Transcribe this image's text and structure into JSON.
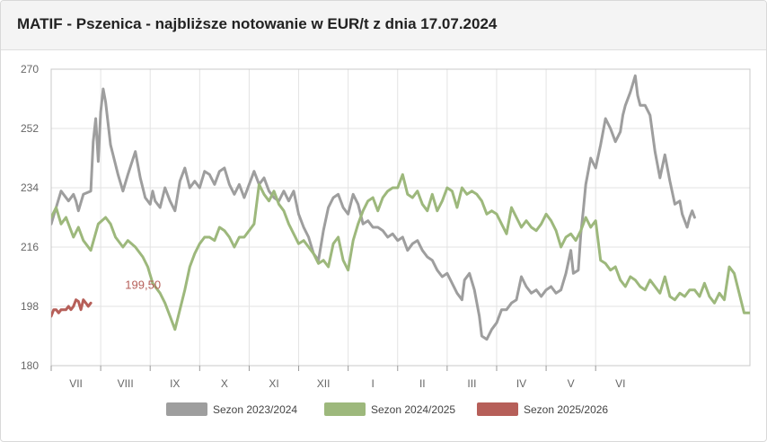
{
  "header": {
    "title": "MATIF - Pszenica - najbliższe notowanie w EUR/t z dnia 17.07.2024"
  },
  "colors": {
    "series_2023": "#9e9e9e",
    "series_2024": "#9db87c",
    "series_2025": "#b65f59",
    "grid": "#e3e3e3",
    "axis_text": "#666666"
  },
  "chart_data": {
    "type": "line",
    "title": "MATIF - Pszenica - najbliższe notowanie w EUR/t z dnia 17.07.2024",
    "xlabel": "",
    "ylabel": "",
    "ylim": [
      180,
      270
    ],
    "yticks": [
      180,
      198,
      216,
      234,
      252,
      270
    ],
    "months": [
      "VII",
      "VIII",
      "IX",
      "X",
      "XI",
      "XII",
      "I",
      "II",
      "III",
      "IV",
      "V",
      "VI"
    ],
    "x_unit": "month index (0 = start of VII, 12 = end of VI)",
    "grid": true,
    "legend_position": "bottom",
    "annotation": {
      "text": "199,50",
      "series": "Sezon 2025/2026",
      "x": 0.55,
      "y": 199.5
    },
    "series": [
      {
        "name": "Sezon 2023/2024",
        "color": "#9e9e9e",
        "points": [
          [
            0.0,
            223
          ],
          [
            0.1,
            228
          ],
          [
            0.2,
            233
          ],
          [
            0.35,
            230
          ],
          [
            0.45,
            232
          ],
          [
            0.5,
            230
          ],
          [
            0.55,
            227
          ],
          [
            0.65,
            232
          ],
          [
            0.8,
            233
          ],
          [
            0.85,
            248
          ],
          [
            0.9,
            255
          ],
          [
            0.95,
            242
          ],
          [
            1.0,
            257
          ],
          [
            1.05,
            264
          ],
          [
            1.1,
            260
          ],
          [
            1.2,
            247
          ],
          [
            1.35,
            238
          ],
          [
            1.45,
            233
          ],
          [
            1.55,
            238
          ],
          [
            1.7,
            245
          ],
          [
            1.8,
            237
          ],
          [
            1.9,
            231
          ],
          [
            2.0,
            229
          ],
          [
            2.05,
            233
          ],
          [
            2.1,
            230
          ],
          [
            2.2,
            228
          ],
          [
            2.3,
            234
          ],
          [
            2.4,
            230
          ],
          [
            2.5,
            227
          ],
          [
            2.6,
            236
          ],
          [
            2.7,
            240
          ],
          [
            2.8,
            234
          ],
          [
            2.9,
            236
          ],
          [
            3.0,
            234
          ],
          [
            3.1,
            239
          ],
          [
            3.2,
            238
          ],
          [
            3.3,
            235
          ],
          [
            3.4,
            239
          ],
          [
            3.5,
            240
          ],
          [
            3.6,
            235
          ],
          [
            3.7,
            232
          ],
          [
            3.8,
            235
          ],
          [
            3.9,
            231
          ],
          [
            4.0,
            235
          ],
          [
            4.1,
            239
          ],
          [
            4.2,
            235
          ],
          [
            4.3,
            237
          ],
          [
            4.4,
            233
          ],
          [
            4.5,
            231
          ],
          [
            4.6,
            230
          ],
          [
            4.7,
            233
          ],
          [
            4.8,
            230
          ],
          [
            4.9,
            233
          ],
          [
            5.0,
            226
          ],
          [
            5.1,
            222
          ],
          [
            5.2,
            219
          ],
          [
            5.3,
            214
          ],
          [
            5.4,
            212
          ],
          [
            5.5,
            221
          ],
          [
            5.6,
            228
          ],
          [
            5.7,
            231
          ],
          [
            5.8,
            232
          ],
          [
            5.9,
            228
          ],
          [
            6.0,
            226
          ],
          [
            6.1,
            232
          ],
          [
            6.2,
            229
          ],
          [
            6.3,
            223
          ],
          [
            6.4,
            224
          ],
          [
            6.5,
            222
          ],
          [
            6.6,
            222
          ],
          [
            6.7,
            221
          ],
          [
            6.8,
            219
          ],
          [
            6.9,
            220
          ],
          [
            7.0,
            218
          ],
          [
            7.1,
            219
          ],
          [
            7.2,
            215
          ],
          [
            7.3,
            217
          ],
          [
            7.4,
            218
          ],
          [
            7.5,
            215
          ],
          [
            7.6,
            213
          ],
          [
            7.7,
            212
          ],
          [
            7.8,
            209
          ],
          [
            7.9,
            207
          ],
          [
            8.0,
            208
          ],
          [
            8.1,
            205
          ],
          [
            8.2,
            202
          ],
          [
            8.3,
            200
          ],
          [
            8.35,
            206
          ],
          [
            8.45,
            208
          ],
          [
            8.55,
            203
          ],
          [
            8.65,
            195
          ],
          [
            8.7,
            189
          ],
          [
            8.8,
            188
          ],
          [
            8.9,
            191
          ],
          [
            9.0,
            193
          ],
          [
            9.1,
            197
          ],
          [
            9.2,
            197
          ],
          [
            9.3,
            199
          ],
          [
            9.4,
            200
          ],
          [
            9.5,
            207
          ],
          [
            9.6,
            204
          ],
          [
            9.7,
            202
          ],
          [
            9.8,
            203
          ],
          [
            9.9,
            201
          ],
          [
            10.0,
            203
          ],
          [
            10.1,
            204
          ],
          [
            10.2,
            202
          ],
          [
            10.3,
            203
          ],
          [
            10.4,
            208
          ],
          [
            10.5,
            215
          ],
          [
            10.55,
            208
          ],
          [
            10.65,
            209
          ],
          [
            10.7,
            220
          ],
          [
            10.75,
            227
          ],
          [
            10.8,
            235
          ],
          [
            10.9,
            243
          ],
          [
            11.0,
            240
          ],
          [
            11.1,
            247
          ],
          [
            11.2,
            255
          ],
          [
            11.3,
            252
          ],
          [
            11.4,
            248
          ],
          [
            11.5,
            251
          ],
          [
            11.55,
            256
          ],
          [
            11.6,
            259
          ],
          [
            11.7,
            263
          ],
          [
            11.8,
            268
          ],
          [
            11.85,
            262
          ],
          [
            11.9,
            259
          ],
          [
            12.0,
            259
          ],
          [
            12.1,
            256
          ],
          [
            12.2,
            245
          ],
          [
            12.3,
            237
          ],
          [
            12.4,
            244
          ],
          [
            12.5,
            236
          ],
          [
            12.6,
            229
          ],
          [
            12.7,
            230
          ],
          [
            12.75,
            226
          ],
          [
            12.85,
            222
          ],
          [
            12.9,
            225
          ],
          [
            12.95,
            227
          ],
          [
            13.0,
            225
          ]
        ]
      },
      {
        "name": "Sezon 2024/2025",
        "color": "#9db87c",
        "points": [
          [
            0.0,
            225
          ],
          [
            0.1,
            228
          ],
          [
            0.2,
            223
          ],
          [
            0.3,
            225
          ],
          [
            0.45,
            219
          ],
          [
            0.55,
            222
          ],
          [
            0.65,
            218
          ],
          [
            0.8,
            215
          ],
          [
            0.95,
            223
          ],
          [
            1.1,
            225
          ],
          [
            1.2,
            223
          ],
          [
            1.3,
            219
          ],
          [
            1.45,
            216
          ],
          [
            1.55,
            218
          ],
          [
            1.7,
            216
          ],
          [
            1.85,
            213
          ],
          [
            1.95,
            210
          ],
          [
            2.05,
            205
          ],
          [
            2.2,
            202
          ],
          [
            2.3,
            199
          ],
          [
            2.4,
            195
          ],
          [
            2.5,
            191
          ],
          [
            2.6,
            197
          ],
          [
            2.7,
            203
          ],
          [
            2.8,
            210
          ],
          [
            2.9,
            214
          ],
          [
            3.0,
            217
          ],
          [
            3.1,
            219
          ],
          [
            3.2,
            219
          ],
          [
            3.3,
            218
          ],
          [
            3.4,
            222
          ],
          [
            3.5,
            221
          ],
          [
            3.6,
            219
          ],
          [
            3.7,
            216
          ],
          [
            3.8,
            219
          ],
          [
            3.9,
            219
          ],
          [
            4.0,
            221
          ],
          [
            4.1,
            223
          ],
          [
            4.2,
            235
          ],
          [
            4.3,
            232
          ],
          [
            4.4,
            230
          ],
          [
            4.5,
            233
          ],
          [
            4.6,
            229
          ],
          [
            4.7,
            227
          ],
          [
            4.8,
            223
          ],
          [
            4.9,
            220
          ],
          [
            5.0,
            217
          ],
          [
            5.1,
            218
          ],
          [
            5.2,
            216
          ],
          [
            5.3,
            214
          ],
          [
            5.4,
            211
          ],
          [
            5.5,
            212
          ],
          [
            5.6,
            210
          ],
          [
            5.7,
            217
          ],
          [
            5.8,
            219
          ],
          [
            5.9,
            212
          ],
          [
            6.0,
            209
          ],
          [
            6.1,
            218
          ],
          [
            6.2,
            223
          ],
          [
            6.3,
            227
          ],
          [
            6.4,
            230
          ],
          [
            6.5,
            231
          ],
          [
            6.6,
            227
          ],
          [
            6.7,
            231
          ],
          [
            6.8,
            233
          ],
          [
            6.9,
            234
          ],
          [
            7.0,
            234
          ],
          [
            7.1,
            238
          ],
          [
            7.2,
            232
          ],
          [
            7.3,
            231
          ],
          [
            7.4,
            233
          ],
          [
            7.5,
            229
          ],
          [
            7.6,
            227
          ],
          [
            7.7,
            232
          ],
          [
            7.8,
            227
          ],
          [
            7.9,
            230
          ],
          [
            8.0,
            234
          ],
          [
            8.1,
            233
          ],
          [
            8.2,
            228
          ],
          [
            8.3,
            234
          ],
          [
            8.4,
            232
          ],
          [
            8.5,
            233
          ],
          [
            8.6,
            232
          ],
          [
            8.7,
            230
          ],
          [
            8.8,
            226
          ],
          [
            8.9,
            227
          ],
          [
            9.0,
            226
          ],
          [
            9.1,
            223
          ],
          [
            9.2,
            220
          ],
          [
            9.3,
            228
          ],
          [
            9.4,
            225
          ],
          [
            9.5,
            222
          ],
          [
            9.6,
            224
          ],
          [
            9.7,
            222
          ],
          [
            9.8,
            221
          ],
          [
            9.9,
            223
          ],
          [
            10.0,
            226
          ],
          [
            10.1,
            224
          ],
          [
            10.2,
            221
          ],
          [
            10.3,
            216
          ],
          [
            10.4,
            219
          ],
          [
            10.5,
            220
          ],
          [
            10.6,
            218
          ],
          [
            10.7,
            221
          ],
          [
            10.8,
            225
          ],
          [
            10.9,
            222
          ],
          [
            11.0,
            224
          ],
          [
            11.1,
            212
          ],
          [
            11.2,
            211
          ],
          [
            11.3,
            209
          ],
          [
            11.4,
            210
          ],
          [
            11.5,
            206
          ],
          [
            11.6,
            204
          ],
          [
            11.7,
            207
          ],
          [
            11.8,
            206
          ],
          [
            11.9,
            204
          ],
          [
            12.0,
            203
          ],
          [
            12.1,
            206
          ],
          [
            12.2,
            204
          ],
          [
            12.3,
            202
          ],
          [
            12.4,
            207
          ],
          [
            12.5,
            201
          ],
          [
            12.6,
            200
          ],
          [
            12.7,
            202
          ],
          [
            12.8,
            201
          ],
          [
            12.9,
            203
          ],
          [
            13.0,
            203
          ],
          [
            13.1,
            201
          ],
          [
            13.2,
            205
          ],
          [
            13.3,
            201
          ],
          [
            13.4,
            199
          ],
          [
            13.5,
            202
          ],
          [
            13.6,
            200
          ],
          [
            13.7,
            210
          ],
          [
            13.8,
            208
          ],
          [
            13.9,
            202
          ],
          [
            14.0,
            196
          ],
          [
            14.1,
            196
          ],
          [
            14.2,
            196
          ]
        ]
      },
      {
        "name": "Sezon 2025/2026",
        "color": "#b65f59",
        "points": [
          [
            0.0,
            195
          ],
          [
            0.05,
            197
          ],
          [
            0.1,
            197
          ],
          [
            0.15,
            196
          ],
          [
            0.2,
            197
          ],
          [
            0.25,
            197
          ],
          [
            0.3,
            197
          ],
          [
            0.35,
            198
          ],
          [
            0.4,
            197
          ],
          [
            0.45,
            198
          ],
          [
            0.5,
            200
          ],
          [
            0.55,
            199.5
          ],
          [
            0.6,
            197
          ],
          [
            0.65,
            200
          ],
          [
            0.7,
            199
          ],
          [
            0.75,
            198
          ],
          [
            0.8,
            199
          ]
        ]
      }
    ]
  }
}
